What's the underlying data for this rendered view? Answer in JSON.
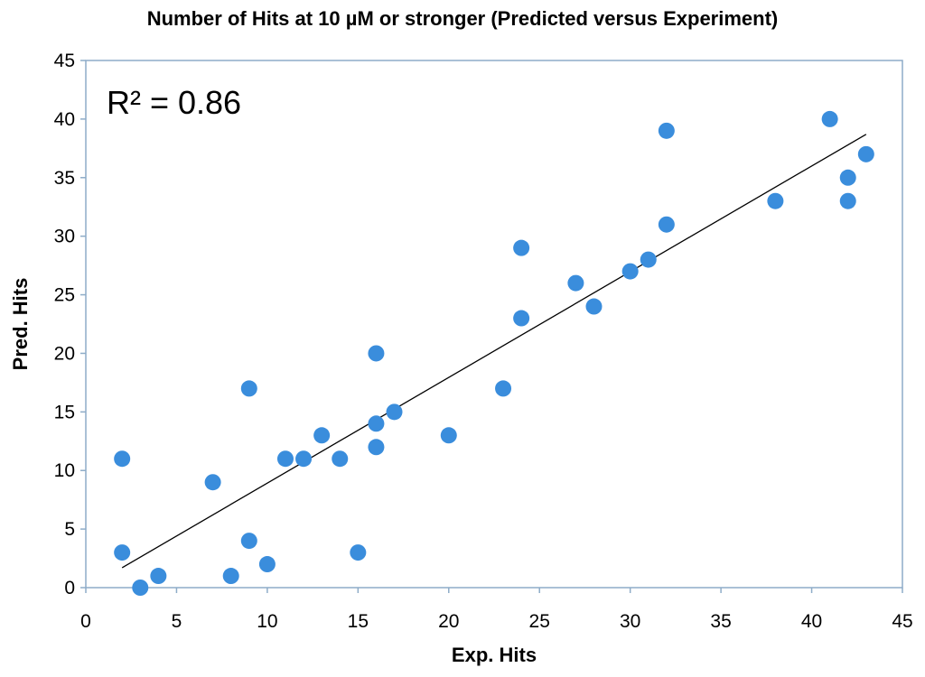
{
  "chart_data": {
    "type": "scatter",
    "title": "Number of Hits at 10 µM or stronger (Predicted versus Experiment)",
    "xlabel": "Exp. Hits",
    "ylabel": "Pred. Hits",
    "xlim": [
      0,
      45
    ],
    "ylim": [
      0,
      45
    ],
    "xticks": [
      0,
      5,
      10,
      15,
      20,
      25,
      30,
      35,
      40,
      45
    ],
    "yticks": [
      0,
      5,
      10,
      15,
      20,
      25,
      30,
      35,
      40,
      45
    ],
    "grid": false,
    "annotation": "R² = 0.86",
    "points": [
      {
        "x": 2,
        "y": 11
      },
      {
        "x": 2,
        "y": 3
      },
      {
        "x": 3,
        "y": 0
      },
      {
        "x": 4,
        "y": 1
      },
      {
        "x": 7,
        "y": 9
      },
      {
        "x": 8,
        "y": 1
      },
      {
        "x": 9,
        "y": 17
      },
      {
        "x": 9,
        "y": 4
      },
      {
        "x": 10,
        "y": 2
      },
      {
        "x": 11,
        "y": 11
      },
      {
        "x": 12,
        "y": 11
      },
      {
        "x": 13,
        "y": 13
      },
      {
        "x": 14,
        "y": 11
      },
      {
        "x": 15,
        "y": 3
      },
      {
        "x": 16,
        "y": 20
      },
      {
        "x": 16,
        "y": 14
      },
      {
        "x": 16,
        "y": 12
      },
      {
        "x": 17,
        "y": 15
      },
      {
        "x": 20,
        "y": 13
      },
      {
        "x": 23,
        "y": 17
      },
      {
        "x": 24,
        "y": 29
      },
      {
        "x": 24,
        "y": 23
      },
      {
        "x": 27,
        "y": 26
      },
      {
        "x": 28,
        "y": 24
      },
      {
        "x": 30,
        "y": 27
      },
      {
        "x": 31,
        "y": 28
      },
      {
        "x": 32,
        "y": 39
      },
      {
        "x": 32,
        "y": 31
      },
      {
        "x": 38,
        "y": 33
      },
      {
        "x": 41,
        "y": 40
      },
      {
        "x": 42,
        "y": 35
      },
      {
        "x": 42,
        "y": 33
      },
      {
        "x": 43,
        "y": 37
      }
    ],
    "trendline": {
      "type": "linear",
      "x": [
        2,
        43
      ],
      "y": [
        1.7,
        38.7
      ]
    },
    "colors": {
      "marker": "#3a8ddc",
      "trendline": "#000000",
      "plot_border": "#8eacc8"
    }
  }
}
